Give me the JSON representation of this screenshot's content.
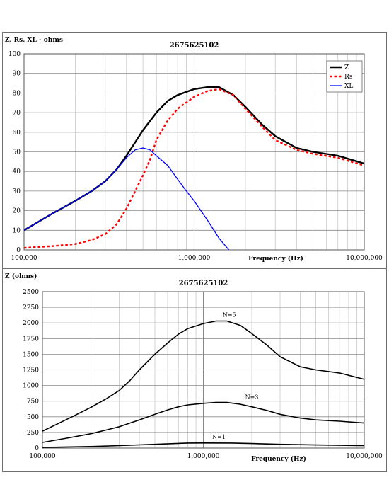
{
  "chart_data": [
    {
      "type": "line",
      "title": "2675625102",
      "ylabel": "Z, Rs, XL - ohms",
      "xlabel": "Frequency (Hz)",
      "xscale": "log",
      "xlim": [
        100000,
        10000000
      ],
      "ylim": [
        0,
        100
      ],
      "yticks": [
        0,
        10,
        20,
        30,
        40,
        50,
        60,
        70,
        80,
        90,
        100
      ],
      "xtick_labels": [
        "100,000",
        "1,000,000",
        "10,000,000"
      ],
      "grid": true,
      "legend": "top-right",
      "series": [
        {
          "name": "Z",
          "color": "#000000",
          "style": "solid",
          "x": [
            100000,
            150000,
            200000,
            250000,
            300000,
            350000,
            400000,
            500000,
            600000,
            700000,
            800000,
            1000000,
            1200000,
            1400000,
            1700000,
            2000000,
            2500000,
            3000000,
            4000000,
            5000000,
            7000000,
            10000000
          ],
          "y": [
            10,
            19,
            25,
            30,
            35,
            41,
            48,
            61,
            70,
            76,
            79,
            82,
            83,
            83,
            79,
            73,
            64,
            58,
            52,
            50,
            48,
            44
          ]
        },
        {
          "name": "Rs",
          "color": "#ff0000",
          "style": "dashed",
          "x": [
            100000,
            150000,
            200000,
            250000,
            300000,
            350000,
            400000,
            450000,
            500000,
            550000,
            600000,
            700000,
            800000,
            1000000,
            1200000,
            1400000,
            1700000,
            2000000,
            2500000,
            3000000,
            4000000,
            5000000,
            7000000,
            10000000
          ],
          "y": [
            1,
            2,
            3,
            5,
            8,
            13,
            21,
            30,
            38,
            46,
            56,
            66,
            72,
            78,
            81,
            82,
            79,
            72,
            63,
            56,
            51,
            49,
            47,
            43
          ]
        },
        {
          "name": "XL",
          "color": "#0000ff",
          "style": "solid",
          "x": [
            100000,
            150000,
            200000,
            250000,
            300000,
            350000,
            400000,
            450000,
            500000,
            550000,
            600000,
            700000,
            800000,
            900000,
            1000000,
            1200000,
            1400000,
            1600000
          ],
          "y": [
            10,
            19,
            25,
            30,
            35,
            41,
            47,
            51,
            52,
            51,
            48,
            43,
            36,
            30,
            25,
            15,
            6,
            0
          ]
        }
      ]
    },
    {
      "type": "line",
      "title": "2675625102",
      "ylabel": "Z (ohms)",
      "xlabel": "Frequency (Hz)",
      "xscale": "log",
      "xlim": [
        100000,
        10000000
      ],
      "ylim": [
        0,
        2500
      ],
      "yticks": [
        0,
        250,
        500,
        750,
        1000,
        1250,
        1500,
        1750,
        2000,
        2250,
        2500
      ],
      "xtick_labels": [
        "100,000",
        "1,000,000",
        "10,000,000"
      ],
      "grid": true,
      "series": [
        {
          "name": "N=5",
          "color": "#000000",
          "style": "solid",
          "x": [
            100000,
            150000,
            200000,
            250000,
            300000,
            350000,
            400000,
            500000,
            600000,
            700000,
            800000,
            1000000,
            1200000,
            1400000,
            1700000,
            2000000,
            2500000,
            3000000,
            4000000,
            5000000,
            7000000,
            10000000
          ],
          "y": [
            270,
            490,
            650,
            790,
            920,
            1080,
            1250,
            1500,
            1680,
            1820,
            1910,
            1990,
            2030,
            2030,
            1960,
            1830,
            1640,
            1460,
            1300,
            1250,
            1200,
            1100
          ]
        },
        {
          "name": "N=3",
          "color": "#000000",
          "style": "solid",
          "x": [
            100000,
            150000,
            200000,
            250000,
            300000,
            350000,
            400000,
            500000,
            600000,
            700000,
            800000,
            1000000,
            1200000,
            1400000,
            1700000,
            2000000,
            2500000,
            3000000,
            4000000,
            5000000,
            7000000,
            10000000
          ],
          "y": [
            90,
            170,
            230,
            290,
            340,
            400,
            450,
            540,
            610,
            660,
            690,
            715,
            730,
            728,
            700,
            660,
            600,
            540,
            480,
            450,
            430,
            400
          ]
        },
        {
          "name": "N=1",
          "color": "#000000",
          "style": "solid",
          "x": [
            100000,
            200000,
            300000,
            500000,
            800000,
            1000000,
            1500000,
            2000000,
            3000000,
            5000000,
            10000000
          ],
          "y": [
            10,
            25,
            40,
            60,
            80,
            82,
            80,
            72,
            60,
            50,
            40
          ]
        }
      ]
    }
  ]
}
